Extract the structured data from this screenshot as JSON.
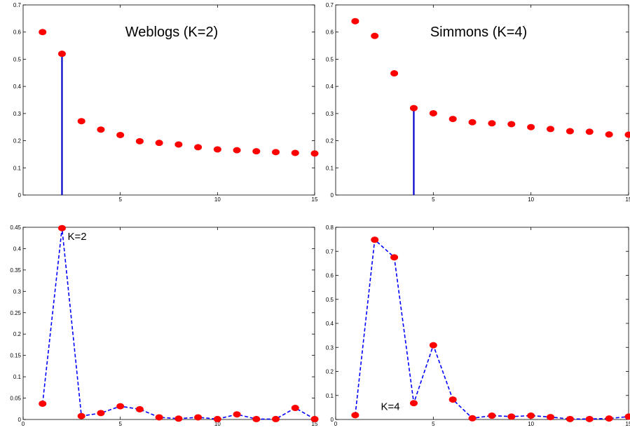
{
  "chart_data": [
    {
      "type": "scatter",
      "title": "Weblogs (K=2)",
      "xlim": [
        0,
        15
      ],
      "ylim": [
        0,
        0.7
      ],
      "xticks": [
        5,
        10,
        15
      ],
      "yticks": [
        0,
        0.1,
        0.2,
        0.3,
        0.4,
        0.5,
        0.6,
        0.7
      ],
      "x": [
        1,
        2,
        3,
        4,
        5,
        6,
        7,
        8,
        9,
        10,
        11,
        12,
        13,
        14,
        15
      ],
      "y": [
        0.6,
        0.52,
        0.272,
        0.241,
        0.221,
        0.198,
        0.192,
        0.186,
        0.176,
        0.168,
        0.165,
        0.161,
        0.158,
        0.155,
        0.153
      ],
      "marker_color": "#ff0000",
      "stem": {
        "x": 2,
        "y": 0.52,
        "color": "#0000cc"
      },
      "annotation": ""
    },
    {
      "type": "scatter",
      "title": "Simmons (K=4)",
      "xlim": [
        0,
        15
      ],
      "ylim": [
        0,
        0.7
      ],
      "xticks": [
        5,
        10,
        15
      ],
      "yticks": [
        0,
        0.1,
        0.2,
        0.3,
        0.4,
        0.5,
        0.6,
        0.7
      ],
      "x": [
        1,
        2,
        3,
        4,
        5,
        6,
        7,
        8,
        9,
        10,
        11,
        12,
        13,
        14,
        15
      ],
      "y": [
        0.64,
        0.586,
        0.448,
        0.32,
        0.301,
        0.28,
        0.268,
        0.264,
        0.261,
        0.25,
        0.243,
        0.235,
        0.233,
        0.223,
        0.222
      ],
      "marker_color": "#ff0000",
      "stem": {
        "x": 4,
        "y": 0.32,
        "color": "#0000cc"
      },
      "annotation": ""
    },
    {
      "type": "line",
      "title": "",
      "xlim": [
        0,
        15
      ],
      "ylim": [
        0,
        0.45
      ],
      "xticks": [
        0,
        5,
        10,
        15
      ],
      "yticks": [
        0,
        0.05,
        0.1,
        0.15,
        0.2,
        0.25,
        0.3,
        0.35,
        0.4,
        0.45
      ],
      "x": [
        1,
        2,
        3,
        4,
        5,
        6,
        7,
        8,
        9,
        10,
        11,
        12,
        13,
        14,
        15
      ],
      "y": [
        0.037,
        0.448,
        0.008,
        0.015,
        0.031,
        0.024,
        0.005,
        0.002,
        0.005,
        0.001,
        0.012,
        0.001,
        0.001,
        0.027,
        0.001
      ],
      "marker_color": "#ff0000",
      "line_color": "#0000ff",
      "line_style": "dashed",
      "annotation": "K=2",
      "annotation_x": 2,
      "annotation_y": 0.448
    },
    {
      "type": "line",
      "title": "",
      "xlim": [
        0,
        15
      ],
      "ylim": [
        0,
        0.8
      ],
      "xticks": [
        0,
        5,
        10,
        15
      ],
      "yticks": [
        0,
        0.1,
        0.2,
        0.3,
        0.4,
        0.5,
        0.6,
        0.7,
        0.8
      ],
      "x": [
        1,
        2,
        3,
        4,
        5,
        6,
        7,
        8,
        9,
        10,
        11,
        12,
        13,
        14,
        15
      ],
      "y": [
        0.018,
        0.748,
        0.675,
        0.068,
        0.309,
        0.083,
        0.005,
        0.016,
        0.012,
        0.016,
        0.01,
        0.002,
        0.002,
        0.004,
        0.012
      ],
      "marker_color": "#ff0000",
      "line_color": "#0000ff",
      "line_style": "dashed",
      "annotation": "K=4",
      "annotation_x": 4,
      "annotation_y": 0.068
    }
  ]
}
